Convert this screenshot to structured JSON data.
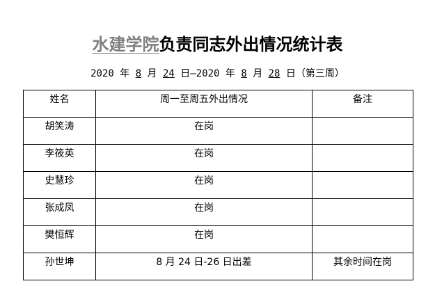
{
  "title": {
    "prefix": "水建学院",
    "main": "负责同志外出情况统计表"
  },
  "subtitle": {
    "year1": "2020",
    "y": "年",
    "month1": "8",
    "m": "月",
    "day1": "24",
    "d": "日",
    "dash": "—",
    "year2": "2020",
    "month2": "8",
    "day2": "28",
    "week": "（第三周）"
  },
  "table": {
    "headers": [
      "姓名",
      "周一至周五外出情况",
      "备注"
    ],
    "rows": [
      [
        "胡笑涛",
        "在岗",
        ""
      ],
      [
        "李筱英",
        "在岗",
        ""
      ],
      [
        "史慧珍",
        "在岗",
        ""
      ],
      [
        "张成凤",
        "在岗",
        ""
      ],
      [
        "樊恒辉",
        "在岗",
        ""
      ],
      [
        "孙世坤",
        "8 月 24 日-26 日出差",
        "其余时间在岗"
      ]
    ]
  }
}
